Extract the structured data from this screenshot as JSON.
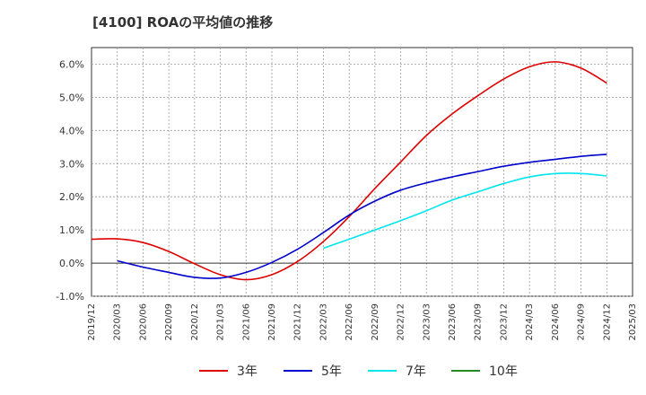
{
  "chart_data": {
    "type": "line",
    "title": "[4100]  ROAの平均値の推移",
    "xlabel": "",
    "ylabel": "",
    "x_ticks": [
      "2019/12",
      "2020/03",
      "2020/06",
      "2020/09",
      "2020/12",
      "2021/03",
      "2021/06",
      "2021/09",
      "2021/12",
      "2022/03",
      "2022/06",
      "2022/09",
      "2022/12",
      "2023/03",
      "2023/06",
      "2023/09",
      "2023/12",
      "2024/03",
      "2024/06",
      "2024/09",
      "2024/12",
      "2025/03"
    ],
    "y_ticks": [
      "-1.0%",
      "0.0%",
      "1.0%",
      "2.0%",
      "3.0%",
      "4.0%",
      "5.0%",
      "6.0%"
    ],
    "ylim": [
      -1.0,
      6.5
    ],
    "grid": true,
    "legend": "bottom",
    "series": [
      {
        "name": "3年",
        "color": "#dd0000",
        "x": [
          "2019/12",
          "2020/03",
          "2020/06",
          "2020/09",
          "2020/12",
          "2021/03",
          "2021/06",
          "2021/09",
          "2021/12",
          "2022/03",
          "2022/06",
          "2022/09",
          "2022/12",
          "2023/03",
          "2023/06",
          "2023/09",
          "2023/12",
          "2024/03",
          "2024/06",
          "2024/09",
          "2024/12"
        ],
        "values": [
          0.72,
          0.73,
          0.62,
          0.35,
          -0.02,
          -0.35,
          -0.5,
          -0.35,
          0.05,
          0.65,
          1.4,
          2.25,
          3.05,
          3.85,
          4.5,
          5.05,
          5.55,
          5.92,
          6.07,
          5.88,
          5.43
        ]
      },
      {
        "name": "5年",
        "color": "#0000cc",
        "x": [
          "2020/03",
          "2020/06",
          "2020/09",
          "2020/12",
          "2021/03",
          "2021/06",
          "2021/09",
          "2021/12",
          "2022/03",
          "2022/06",
          "2022/09",
          "2022/12",
          "2023/03",
          "2023/06",
          "2023/09",
          "2023/12",
          "2024/03",
          "2024/06",
          "2024/09",
          "2024/12"
        ],
        "values": [
          0.07,
          -0.12,
          -0.28,
          -0.43,
          -0.45,
          -0.28,
          0.02,
          0.42,
          0.92,
          1.45,
          1.87,
          2.2,
          2.42,
          2.6,
          2.76,
          2.92,
          3.04,
          3.13,
          3.22,
          3.28
        ]
      },
      {
        "name": "7年",
        "color": "#00e5ee",
        "x": [
          "2022/03",
          "2022/06",
          "2022/09",
          "2022/12",
          "2023/03",
          "2023/06",
          "2023/09",
          "2023/12",
          "2024/03",
          "2024/06",
          "2024/09",
          "2024/12"
        ],
        "values": [
          0.45,
          0.72,
          1.0,
          1.28,
          1.58,
          1.9,
          2.15,
          2.4,
          2.6,
          2.7,
          2.7,
          2.63
        ]
      },
      {
        "name": "10年",
        "color": "#228b22",
        "x": [],
        "values": []
      }
    ]
  }
}
